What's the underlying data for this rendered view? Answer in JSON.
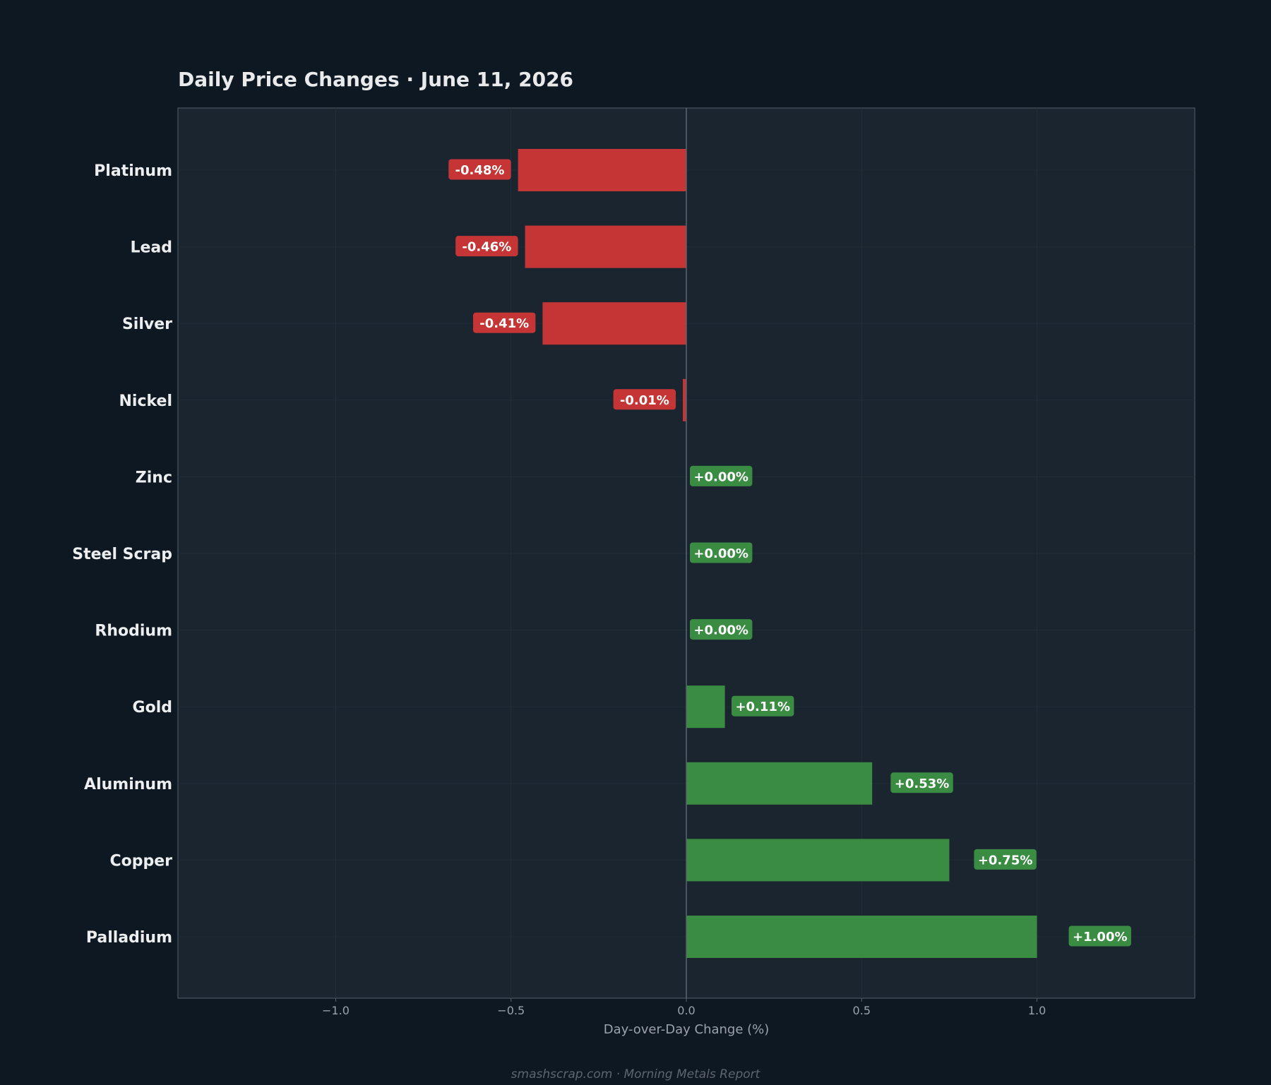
{
  "chart_data": {
    "type": "bar",
    "orientation": "horizontal",
    "title": "Daily Price Changes  ·  June 11, 2026",
    "xlabel": "Day-over-Day Change (%)",
    "ylabel": "",
    "xlim": [
      -1.45,
      1.45
    ],
    "xticks": [
      -1.0,
      -0.5,
      0.0,
      0.5,
      1.0
    ],
    "xtick_labels": [
      "−1.0",
      "−0.5",
      "0.0",
      "0.5",
      "1.0"
    ],
    "grid": true,
    "categories": [
      "Platinum",
      "Lead",
      "Silver",
      "Nickel",
      "Zinc",
      "Steel Scrap",
      "Rhodium",
      "Gold",
      "Aluminum",
      "Copper",
      "Palladium"
    ],
    "values": [
      -0.48,
      -0.46,
      -0.41,
      -0.01,
      0.0,
      0.0,
      0.0,
      0.11,
      0.53,
      0.75,
      1.0
    ],
    "data_labels": [
      "-0.48%",
      "-0.46%",
      "-0.41%",
      "-0.01%",
      "+0.00%",
      "+0.00%",
      "+0.00%",
      "+0.11%",
      "+0.53%",
      "+0.75%",
      "+1.00%"
    ],
    "colors": {
      "negative": "#c63535",
      "positive": "#3b8c43"
    }
  },
  "footer": "smashscrap.com  ·  Morning Metals Report"
}
